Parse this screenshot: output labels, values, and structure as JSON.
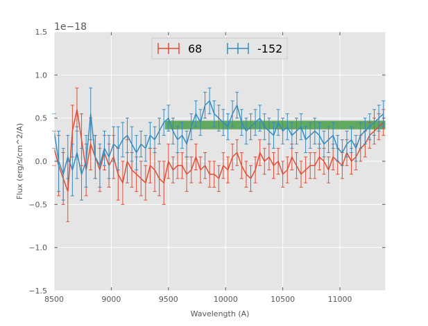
{
  "chart_data": {
    "type": "line",
    "title": "",
    "xlabel": "Wavelength (A)",
    "ylabel": "Flux (erg/s/cm^2/A)",
    "y_offset_label": "1e−18",
    "xlim": [
      8500,
      11400
    ],
    "ylim": [
      -1.5,
      1.5
    ],
    "x_ticks": [
      8500,
      9000,
      9500,
      10000,
      10500,
      11000
    ],
    "x_tick_labels": [
      "8500",
      "9000",
      "9500",
      "10000",
      "10500",
      "11000"
    ],
    "y_ticks": [
      -1.5,
      -1.0,
      -0.5,
      0.0,
      0.5,
      1.0,
      1.5
    ],
    "y_tick_labels": [
      "−1.5",
      "−1.0",
      "−0.5",
      "0.0",
      "0.5",
      "1.0",
      "1.5"
    ],
    "grid": true,
    "legend_position": "top-center",
    "band": {
      "x_start": 9470,
      "x_end": 11400,
      "y_low": 0.37,
      "y_high": 0.47,
      "color": "#4a9e4a"
    },
    "series": [
      {
        "name": "68",
        "color": "#e24a33",
        "x": [
          8500,
          8540,
          8580,
          8620,
          8660,
          8700,
          8740,
          8780,
          8820,
          8860,
          8900,
          8940,
          8980,
          9020,
          9060,
          9100,
          9140,
          9180,
          9220,
          9260,
          9300,
          9340,
          9380,
          9420,
          9460,
          9500,
          9540,
          9580,
          9620,
          9660,
          9700,
          9740,
          9780,
          9820,
          9860,
          9900,
          9940,
          9980,
          10020,
          10060,
          10100,
          10140,
          10180,
          10220,
          10260,
          10300,
          10340,
          10380,
          10420,
          10460,
          10500,
          10540,
          10580,
          10620,
          10660,
          10700,
          10740,
          10780,
          10820,
          10860,
          10900,
          10940,
          10980,
          11020,
          11060,
          11100,
          11140,
          11180,
          11220,
          11260,
          11300,
          11340,
          11380
        ],
        "y": [
          0.15,
          -0.05,
          -0.2,
          -0.35,
          0.35,
          0.6,
          0.25,
          -0.1,
          0.2,
          0.05,
          -0.1,
          0.1,
          -0.05,
          0.05,
          -0.15,
          -0.25,
          0.0,
          -0.1,
          -0.15,
          -0.2,
          -0.25,
          -0.05,
          -0.1,
          -0.2,
          -0.25,
          0.0,
          -0.1,
          -0.05,
          -0.05,
          -0.15,
          -0.1,
          0.05,
          -0.1,
          -0.05,
          -0.15,
          -0.15,
          -0.2,
          -0.05,
          -0.1,
          0.05,
          0.1,
          -0.05,
          -0.15,
          -0.2,
          -0.1,
          0.1,
          0.0,
          0.05,
          -0.05,
          0.0,
          -0.15,
          -0.1,
          0.05,
          -0.05,
          -0.15,
          -0.1,
          -0.05,
          -0.05,
          0.05,
          0.0,
          -0.1,
          0.05,
          0.0,
          -0.05,
          0.1,
          0.0,
          0.05,
          0.15,
          0.2,
          0.3,
          0.35,
          0.4,
          0.45
        ],
        "yerr": [
          0.2,
          0.35,
          0.3,
          0.35,
          0.3,
          0.25,
          0.3,
          0.3,
          0.3,
          0.25,
          0.25,
          0.2,
          0.25,
          0.25,
          0.3,
          0.25,
          0.25,
          0.2,
          0.2,
          0.2,
          0.2,
          0.2,
          0.25,
          0.2,
          0.25,
          0.2,
          0.15,
          0.15,
          0.15,
          0.2,
          0.15,
          0.15,
          0.15,
          0.15,
          0.15,
          0.15,
          0.15,
          0.15,
          0.15,
          0.15,
          0.15,
          0.15,
          0.15,
          0.15,
          0.15,
          0.15,
          0.15,
          0.15,
          0.15,
          0.15,
          0.15,
          0.15,
          0.15,
          0.15,
          0.15,
          0.15,
          0.15,
          0.15,
          0.15,
          0.15,
          0.15,
          0.15,
          0.15,
          0.15,
          0.15,
          0.15,
          0.15,
          0.15,
          0.15,
          0.15,
          0.15,
          0.15,
          0.15
        ]
      },
      {
        "name": "-152",
        "color": "#348abd",
        "x": [
          8500,
          8540,
          8580,
          8620,
          8660,
          8700,
          8740,
          8780,
          8820,
          8860,
          8900,
          8940,
          8980,
          9020,
          9060,
          9100,
          9140,
          9180,
          9220,
          9260,
          9300,
          9340,
          9380,
          9420,
          9460,
          9500,
          9540,
          9580,
          9620,
          9660,
          9700,
          9740,
          9780,
          9820,
          9860,
          9900,
          9940,
          9980,
          10020,
          10060,
          10100,
          10140,
          10180,
          10220,
          10260,
          10300,
          10340,
          10380,
          10420,
          10460,
          10500,
          10540,
          10580,
          10620,
          10660,
          10700,
          10740,
          10780,
          10820,
          10860,
          10900,
          10940,
          10980,
          11020,
          11060,
          11100,
          11140,
          11180,
          11220,
          11260,
          11300,
          11340,
          11380
        ],
        "y": [
          0.35,
          0.0,
          -0.15,
          0.05,
          -0.1,
          0.1,
          -0.15,
          0.0,
          0.55,
          0.05,
          -0.05,
          0.15,
          0.05,
          0.2,
          0.15,
          0.25,
          0.3,
          0.2,
          0.1,
          0.2,
          0.15,
          0.3,
          0.25,
          0.35,
          0.45,
          0.5,
          0.35,
          0.25,
          0.3,
          0.2,
          0.4,
          0.55,
          0.45,
          0.65,
          0.7,
          0.55,
          0.5,
          0.45,
          0.4,
          0.55,
          0.65,
          0.45,
          0.35,
          0.4,
          0.45,
          0.5,
          0.4,
          0.35,
          0.3,
          0.45,
          0.35,
          0.4,
          0.3,
          0.35,
          0.4,
          0.25,
          0.3,
          0.35,
          0.3,
          0.2,
          0.25,
          0.3,
          0.15,
          0.1,
          0.2,
          0.25,
          0.15,
          0.3,
          0.35,
          0.4,
          0.45,
          0.5,
          0.55
        ],
        "yerr": [
          0.2,
          0.35,
          0.3,
          0.25,
          0.3,
          0.3,
          0.3,
          0.3,
          0.3,
          0.25,
          0.25,
          0.2,
          0.25,
          0.2,
          0.25,
          0.2,
          0.2,
          0.2,
          0.2,
          0.15,
          0.15,
          0.15,
          0.15,
          0.15,
          0.15,
          0.15,
          0.15,
          0.15,
          0.15,
          0.15,
          0.15,
          0.15,
          0.15,
          0.15,
          0.15,
          0.15,
          0.15,
          0.15,
          0.15,
          0.15,
          0.15,
          0.15,
          0.15,
          0.15,
          0.15,
          0.15,
          0.15,
          0.15,
          0.15,
          0.15,
          0.15,
          0.15,
          0.15,
          0.15,
          0.15,
          0.15,
          0.15,
          0.15,
          0.15,
          0.15,
          0.15,
          0.15,
          0.15,
          0.15,
          0.15,
          0.15,
          0.15,
          0.15,
          0.15,
          0.15,
          0.15,
          0.15,
          0.15
        ]
      }
    ]
  }
}
